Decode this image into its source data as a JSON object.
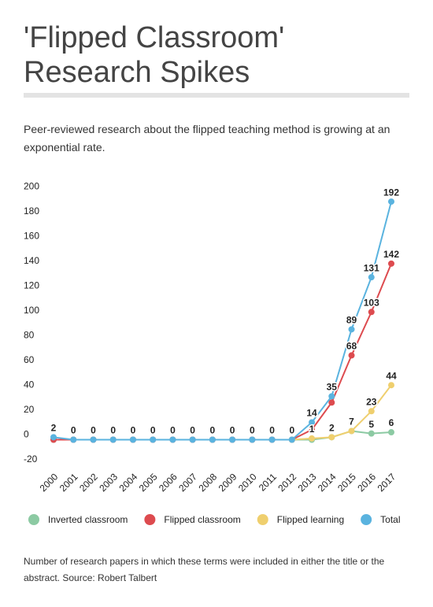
{
  "chart_data": {
    "type": "line",
    "title": "'Flipped Classroom' Research Spikes",
    "subtitle": "Peer-reviewed research about the flipped teaching method is growing at an exponential rate.",
    "note": "Number of research papers in which these terms were included in either the title or the abstract. Source: Robert Talbert",
    "categories": [
      "2000",
      "2001",
      "2002",
      "2003",
      "2004",
      "2005",
      "2006",
      "2007",
      "2008",
      "2009",
      "2010",
      "2011",
      "2012",
      "2013",
      "2014",
      "2015",
      "2016",
      "2017"
    ],
    "series": [
      {
        "name": "Inverted classroom",
        "color": "#8ccaa3",
        "values": [
          0,
          0,
          0,
          0,
          0,
          0,
          0,
          0,
          0,
          0,
          0,
          0,
          0,
          0,
          2,
          7,
          5,
          6
        ],
        "value_labels": [
          null,
          null,
          null,
          null,
          null,
          null,
          null,
          null,
          null,
          null,
          null,
          null,
          null,
          null,
          null,
          null,
          "5",
          "6"
        ]
      },
      {
        "name": "Flipped classroom",
        "color": "#dd4b4f",
        "values": [
          0,
          0,
          0,
          0,
          0,
          0,
          0,
          0,
          0,
          0,
          0,
          0,
          0,
          8,
          30,
          68,
          103,
          142
        ],
        "value_labels": [
          null,
          null,
          null,
          null,
          null,
          null,
          null,
          null,
          null,
          null,
          null,
          null,
          null,
          null,
          null,
          "68",
          "103",
          "142"
        ]
      },
      {
        "name": "Flipped learning",
        "color": "#efcf6e",
        "values": [
          null,
          null,
          null,
          null,
          null,
          null,
          null,
          null,
          null,
          null,
          null,
          null,
          0,
          1,
          2,
          7,
          23,
          44
        ],
        "value_labels": [
          null,
          null,
          null,
          null,
          null,
          null,
          null,
          null,
          null,
          null,
          null,
          null,
          null,
          "1",
          "2",
          "7",
          "23",
          "44"
        ]
      },
      {
        "name": "Total",
        "color": "#5ab3df",
        "values": [
          2,
          0,
          0,
          0,
          0,
          0,
          0,
          0,
          0,
          0,
          0,
          0,
          0,
          14,
          35,
          89,
          131,
          192
        ],
        "value_labels": [
          "2",
          "0",
          "0",
          "0",
          "0",
          "0",
          "0",
          "0",
          "0",
          "0",
          "0",
          "0",
          "0",
          "14",
          "35",
          "89",
          "131",
          "192"
        ]
      }
    ],
    "ylim": [
      -20,
      200
    ],
    "yticks": [
      -20,
      0,
      20,
      40,
      60,
      80,
      100,
      120,
      140,
      160,
      180,
      200
    ],
    "grid": false
  }
}
